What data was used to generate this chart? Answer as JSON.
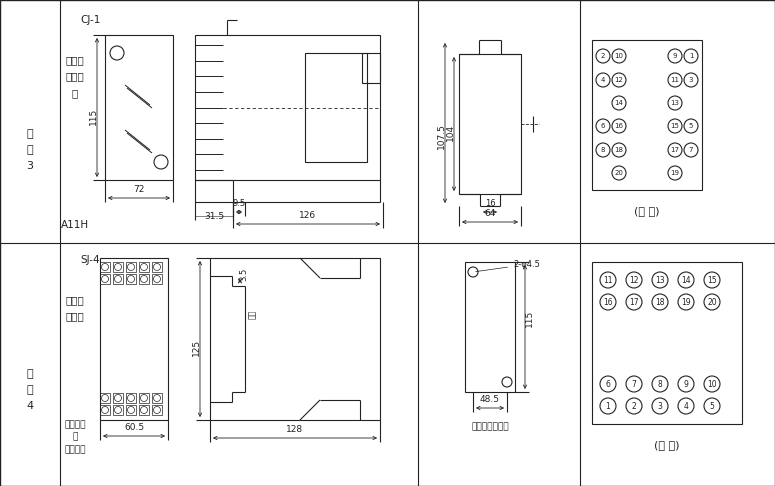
{
  "bg_color": "#ffffff",
  "line_color": "#222222",
  "back_view_label": "(背 視)",
  "front_view_label": "(正 視)",
  "screw_label": "螺頒安裝開孔圖"
}
